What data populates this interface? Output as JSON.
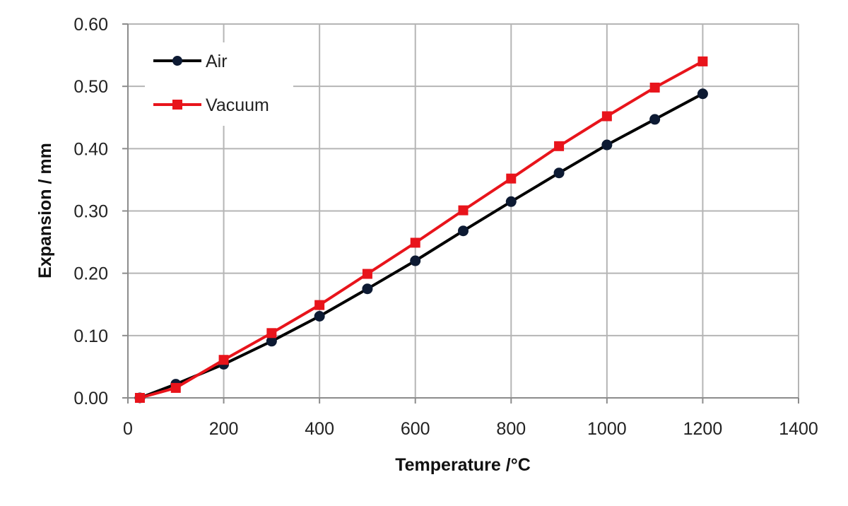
{
  "chart_data": {
    "type": "line",
    "title": "",
    "xlabel": "Temperature /°C",
    "ylabel": "Expansion / mm",
    "xlim": [
      0,
      1400
    ],
    "ylim": [
      0,
      0.6
    ],
    "xticks": [
      0,
      200,
      400,
      600,
      800,
      1000,
      1200,
      1400
    ],
    "xtick_labels": [
      "0",
      "200",
      "400",
      "600",
      "800",
      "1000",
      "1200",
      "1400"
    ],
    "yticks": [
      0,
      0.1,
      0.2,
      0.3,
      0.4,
      0.5,
      0.6
    ],
    "ytick_labels": [
      "0.00",
      "0.10",
      "0.20",
      "0.30",
      "0.40",
      "0.50",
      "0.60"
    ],
    "grid": true,
    "legend_position": "top-left",
    "series": [
      {
        "name": "Air",
        "color": "#000000",
        "marker": "circle",
        "marker_color": "#0d1a33",
        "x": [
          25,
          100,
          200,
          300,
          400,
          500,
          600,
          700,
          800,
          900,
          1000,
          1100,
          1200
        ],
        "y": [
          0.0,
          0.022,
          0.054,
          0.091,
          0.131,
          0.175,
          0.22,
          0.268,
          0.315,
          0.361,
          0.406,
          0.447,
          0.488
        ]
      },
      {
        "name": "Vacuum",
        "color": "#e8141b",
        "marker": "square",
        "marker_color": "#e8141b",
        "x": [
          25,
          100,
          200,
          300,
          400,
          500,
          600,
          700,
          800,
          900,
          1000,
          1100,
          1200
        ],
        "y": [
          0.0,
          0.016,
          0.061,
          0.104,
          0.149,
          0.199,
          0.249,
          0.301,
          0.352,
          0.404,
          0.452,
          0.498,
          0.54
        ]
      }
    ]
  }
}
